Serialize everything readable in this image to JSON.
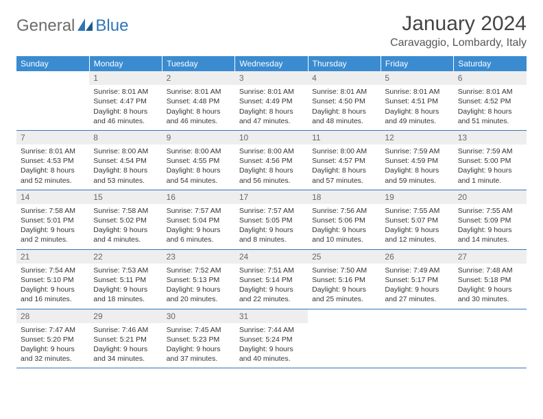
{
  "header": {
    "logo_general": "General",
    "logo_blue": "Blue",
    "title": "January 2024",
    "location": "Caravaggio, Lombardy, Italy"
  },
  "colors": {
    "header_bg": "#3a8bd0",
    "header_text": "#ffffff",
    "daynum_bg": "#eeeeee",
    "border": "#2e75b6",
    "logo_gray": "#6b6b6b",
    "logo_blue": "#2e75b6"
  },
  "weekdays": [
    "Sunday",
    "Monday",
    "Tuesday",
    "Wednesday",
    "Thursday",
    "Friday",
    "Saturday"
  ],
  "start_offset": 1,
  "days": [
    {
      "n": "1",
      "sunrise": "8:01 AM",
      "sunset": "4:47 PM",
      "daylight": "8 hours and 46 minutes."
    },
    {
      "n": "2",
      "sunrise": "8:01 AM",
      "sunset": "4:48 PM",
      "daylight": "8 hours and 46 minutes."
    },
    {
      "n": "3",
      "sunrise": "8:01 AM",
      "sunset": "4:49 PM",
      "daylight": "8 hours and 47 minutes."
    },
    {
      "n": "4",
      "sunrise": "8:01 AM",
      "sunset": "4:50 PM",
      "daylight": "8 hours and 48 minutes."
    },
    {
      "n": "5",
      "sunrise": "8:01 AM",
      "sunset": "4:51 PM",
      "daylight": "8 hours and 49 minutes."
    },
    {
      "n": "6",
      "sunrise": "8:01 AM",
      "sunset": "4:52 PM",
      "daylight": "8 hours and 51 minutes."
    },
    {
      "n": "7",
      "sunrise": "8:01 AM",
      "sunset": "4:53 PM",
      "daylight": "8 hours and 52 minutes."
    },
    {
      "n": "8",
      "sunrise": "8:00 AM",
      "sunset": "4:54 PM",
      "daylight": "8 hours and 53 minutes."
    },
    {
      "n": "9",
      "sunrise": "8:00 AM",
      "sunset": "4:55 PM",
      "daylight": "8 hours and 54 minutes."
    },
    {
      "n": "10",
      "sunrise": "8:00 AM",
      "sunset": "4:56 PM",
      "daylight": "8 hours and 56 minutes."
    },
    {
      "n": "11",
      "sunrise": "8:00 AM",
      "sunset": "4:57 PM",
      "daylight": "8 hours and 57 minutes."
    },
    {
      "n": "12",
      "sunrise": "7:59 AM",
      "sunset": "4:59 PM",
      "daylight": "8 hours and 59 minutes."
    },
    {
      "n": "13",
      "sunrise": "7:59 AM",
      "sunset": "5:00 PM",
      "daylight": "9 hours and 1 minute."
    },
    {
      "n": "14",
      "sunrise": "7:58 AM",
      "sunset": "5:01 PM",
      "daylight": "9 hours and 2 minutes."
    },
    {
      "n": "15",
      "sunrise": "7:58 AM",
      "sunset": "5:02 PM",
      "daylight": "9 hours and 4 minutes."
    },
    {
      "n": "16",
      "sunrise": "7:57 AM",
      "sunset": "5:04 PM",
      "daylight": "9 hours and 6 minutes."
    },
    {
      "n": "17",
      "sunrise": "7:57 AM",
      "sunset": "5:05 PM",
      "daylight": "9 hours and 8 minutes."
    },
    {
      "n": "18",
      "sunrise": "7:56 AM",
      "sunset": "5:06 PM",
      "daylight": "9 hours and 10 minutes."
    },
    {
      "n": "19",
      "sunrise": "7:55 AM",
      "sunset": "5:07 PM",
      "daylight": "9 hours and 12 minutes."
    },
    {
      "n": "20",
      "sunrise": "7:55 AM",
      "sunset": "5:09 PM",
      "daylight": "9 hours and 14 minutes."
    },
    {
      "n": "21",
      "sunrise": "7:54 AM",
      "sunset": "5:10 PM",
      "daylight": "9 hours and 16 minutes."
    },
    {
      "n": "22",
      "sunrise": "7:53 AM",
      "sunset": "5:11 PM",
      "daylight": "9 hours and 18 minutes."
    },
    {
      "n": "23",
      "sunrise": "7:52 AM",
      "sunset": "5:13 PM",
      "daylight": "9 hours and 20 minutes."
    },
    {
      "n": "24",
      "sunrise": "7:51 AM",
      "sunset": "5:14 PM",
      "daylight": "9 hours and 22 minutes."
    },
    {
      "n": "25",
      "sunrise": "7:50 AM",
      "sunset": "5:16 PM",
      "daylight": "9 hours and 25 minutes."
    },
    {
      "n": "26",
      "sunrise": "7:49 AM",
      "sunset": "5:17 PM",
      "daylight": "9 hours and 27 minutes."
    },
    {
      "n": "27",
      "sunrise": "7:48 AM",
      "sunset": "5:18 PM",
      "daylight": "9 hours and 30 minutes."
    },
    {
      "n": "28",
      "sunrise": "7:47 AM",
      "sunset": "5:20 PM",
      "daylight": "9 hours and 32 minutes."
    },
    {
      "n": "29",
      "sunrise": "7:46 AM",
      "sunset": "5:21 PM",
      "daylight": "9 hours and 34 minutes."
    },
    {
      "n": "30",
      "sunrise": "7:45 AM",
      "sunset": "5:23 PM",
      "daylight": "9 hours and 37 minutes."
    },
    {
      "n": "31",
      "sunrise": "7:44 AM",
      "sunset": "5:24 PM",
      "daylight": "9 hours and 40 minutes."
    }
  ],
  "labels": {
    "sunrise": "Sunrise:",
    "sunset": "Sunset:",
    "daylight": "Daylight:"
  }
}
